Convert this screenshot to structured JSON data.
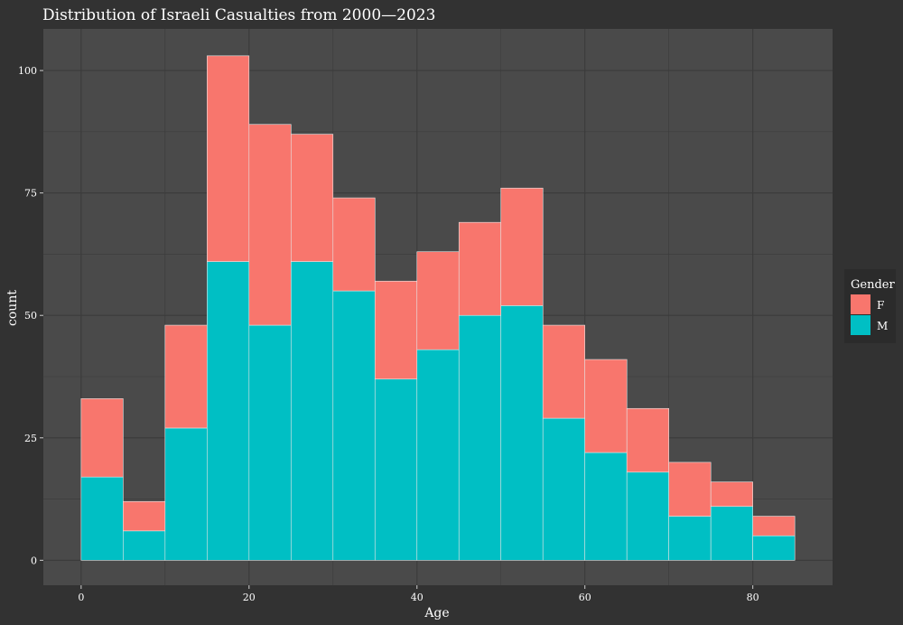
{
  "chart_data": {
    "type": "bar",
    "stacked": true,
    "title": "Distribution of Israeli Casualties from 2000—2023",
    "xlabel": "Age",
    "ylabel": "count",
    "xlim": [
      -4.5,
      89.5
    ],
    "ylim": [
      -5.1,
      108.5
    ],
    "x_ticks": [
      0,
      20,
      40,
      60,
      80
    ],
    "y_ticks": [
      0,
      25,
      50,
      75,
      100
    ],
    "grid": true,
    "legend_position": "right",
    "bins": [
      [
        0,
        5
      ],
      [
        5,
        10
      ],
      [
        10,
        15
      ],
      [
        15,
        20
      ],
      [
        20,
        25
      ],
      [
        25,
        30
      ],
      [
        30,
        35
      ],
      [
        35,
        40
      ],
      [
        40,
        45
      ],
      [
        45,
        50
      ],
      [
        50,
        55
      ],
      [
        55,
        60
      ],
      [
        60,
        65
      ],
      [
        65,
        70
      ],
      [
        70,
        75
      ],
      [
        75,
        80
      ],
      [
        80,
        85
      ]
    ],
    "series": [
      {
        "name": "F",
        "color": "#F8766D",
        "values": [
          16,
          6,
          21,
          42,
          41,
          26,
          19,
          20,
          20,
          19,
          24,
          19,
          19,
          13,
          11,
          5,
          4
        ]
      },
      {
        "name": "M",
        "color": "#00BFC4",
        "values": [
          17,
          6,
          27,
          61,
          48,
          61,
          55,
          37,
          43,
          50,
          52,
          29,
          22,
          18,
          9,
          11,
          5
        ]
      }
    ],
    "legend": {
      "title": "Gender",
      "items": [
        "F",
        "M"
      ]
    }
  },
  "colors": {
    "background": "#323232",
    "panel": "#4a4a4a",
    "gridline": "#3b3b3b",
    "bar_outline": "#e6e6e6",
    "text": "#ffffff"
  }
}
